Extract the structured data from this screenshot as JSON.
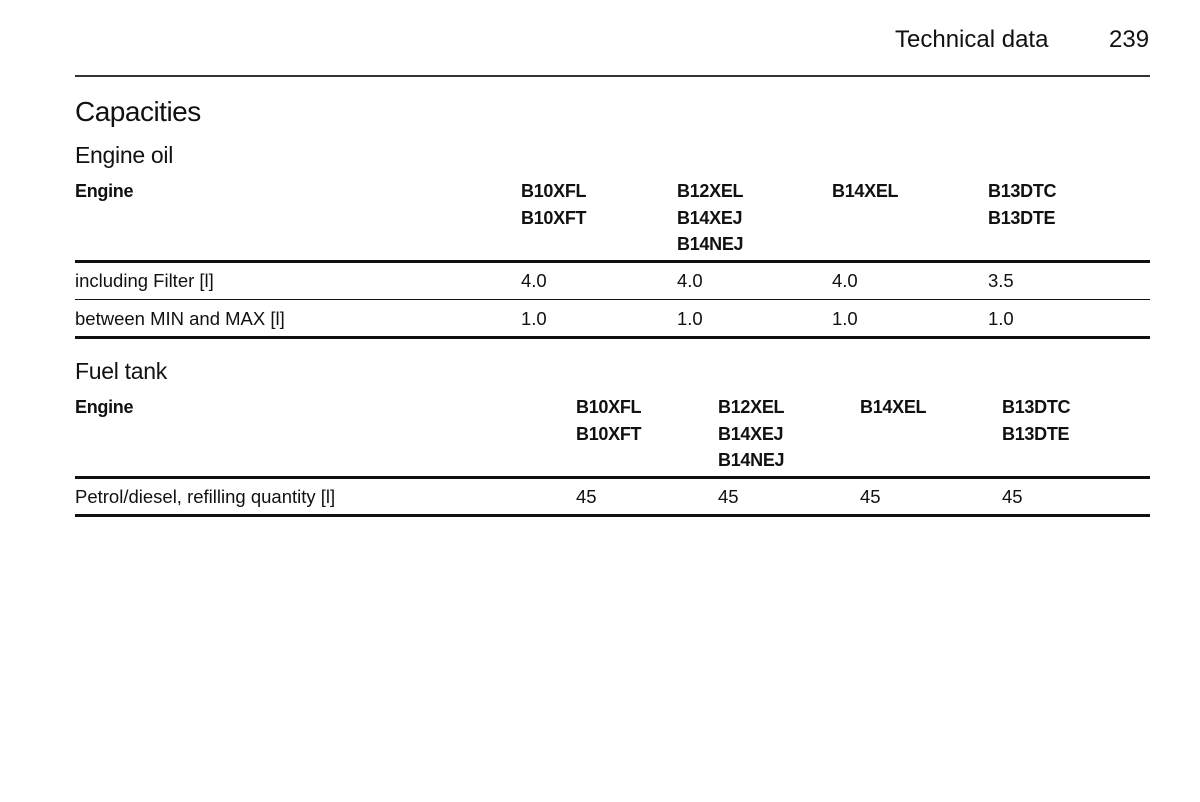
{
  "header": {
    "section": "Technical data",
    "page": "239"
  },
  "title": "Capacities",
  "tables": [
    {
      "title": "Engine oil",
      "columns": [
        [
          "Engine"
        ],
        [
          "B10XFL",
          "B10XFT"
        ],
        [
          "B12XEL",
          "B14XEJ",
          "B14NEJ"
        ],
        [
          "B14XEL"
        ],
        [
          "B13DTC",
          "B13DTE"
        ]
      ],
      "rows": [
        [
          "including Filter [l]",
          "4.0",
          "4.0",
          "4.0",
          "3.5"
        ],
        [
          "between MIN and MAX [l]",
          "1.0",
          "1.0",
          "1.0",
          "1.0"
        ]
      ]
    },
    {
      "title": "Fuel tank",
      "columns": [
        [
          "Engine"
        ],
        [
          "B10XFL",
          "B10XFT"
        ],
        [
          "B12XEL",
          "B14XEJ",
          "B14NEJ"
        ],
        [
          "B14XEL"
        ],
        [
          "B13DTC",
          "B13DTE"
        ]
      ],
      "rows": [
        [
          "Petrol/diesel, refilling quantity [l]",
          "45",
          "45",
          "45",
          "45"
        ]
      ]
    }
  ]
}
